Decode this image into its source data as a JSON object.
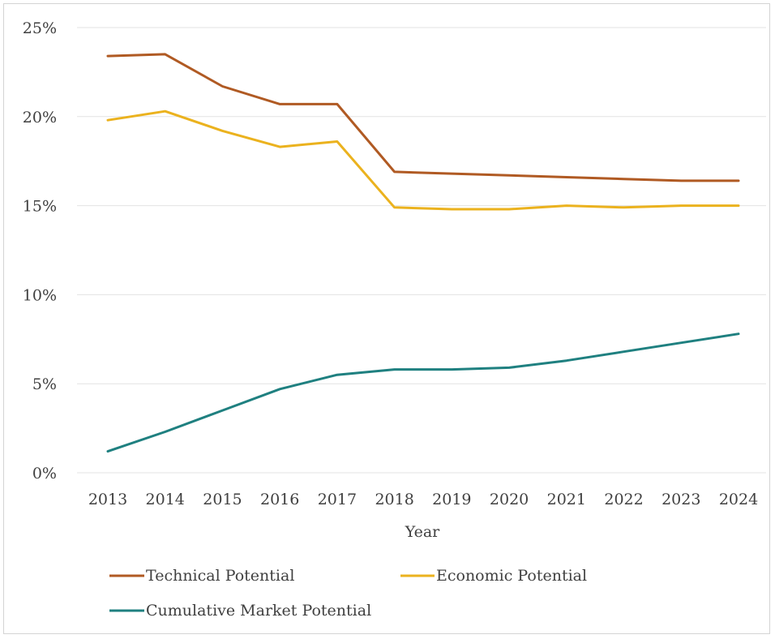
{
  "chart_data": {
    "type": "line",
    "title": "",
    "xlabel": "Year",
    "ylabel": "",
    "categories": [
      "2013",
      "2014",
      "2015",
      "2016",
      "2017",
      "2018",
      "2019",
      "2020",
      "2021",
      "2022",
      "2023",
      "2024"
    ],
    "yticks": [
      "0%",
      "5%",
      "10%",
      "15%",
      "20%",
      "25%"
    ],
    "ylim": [
      0,
      25
    ],
    "grid": true,
    "legend_position": "bottom",
    "series": [
      {
        "name": "Technical Potential",
        "color": "#b05a23",
        "values": [
          23.4,
          23.5,
          21.7,
          20.7,
          20.7,
          16.9,
          16.8,
          16.7,
          16.6,
          16.5,
          16.4,
          16.4
        ]
      },
      {
        "name": "Economic Potential",
        "color": "#ebb21e",
        "values": [
          19.8,
          20.3,
          19.2,
          18.3,
          18.6,
          14.9,
          14.8,
          14.8,
          15.0,
          14.9,
          15.0,
          15.0
        ]
      },
      {
        "name": "Cumulative Market Potential",
        "color": "#1f8080",
        "values": [
          1.2,
          2.3,
          3.5,
          4.7,
          5.5,
          5.8,
          5.8,
          5.9,
          6.3,
          6.8,
          7.3,
          7.8
        ]
      }
    ]
  }
}
